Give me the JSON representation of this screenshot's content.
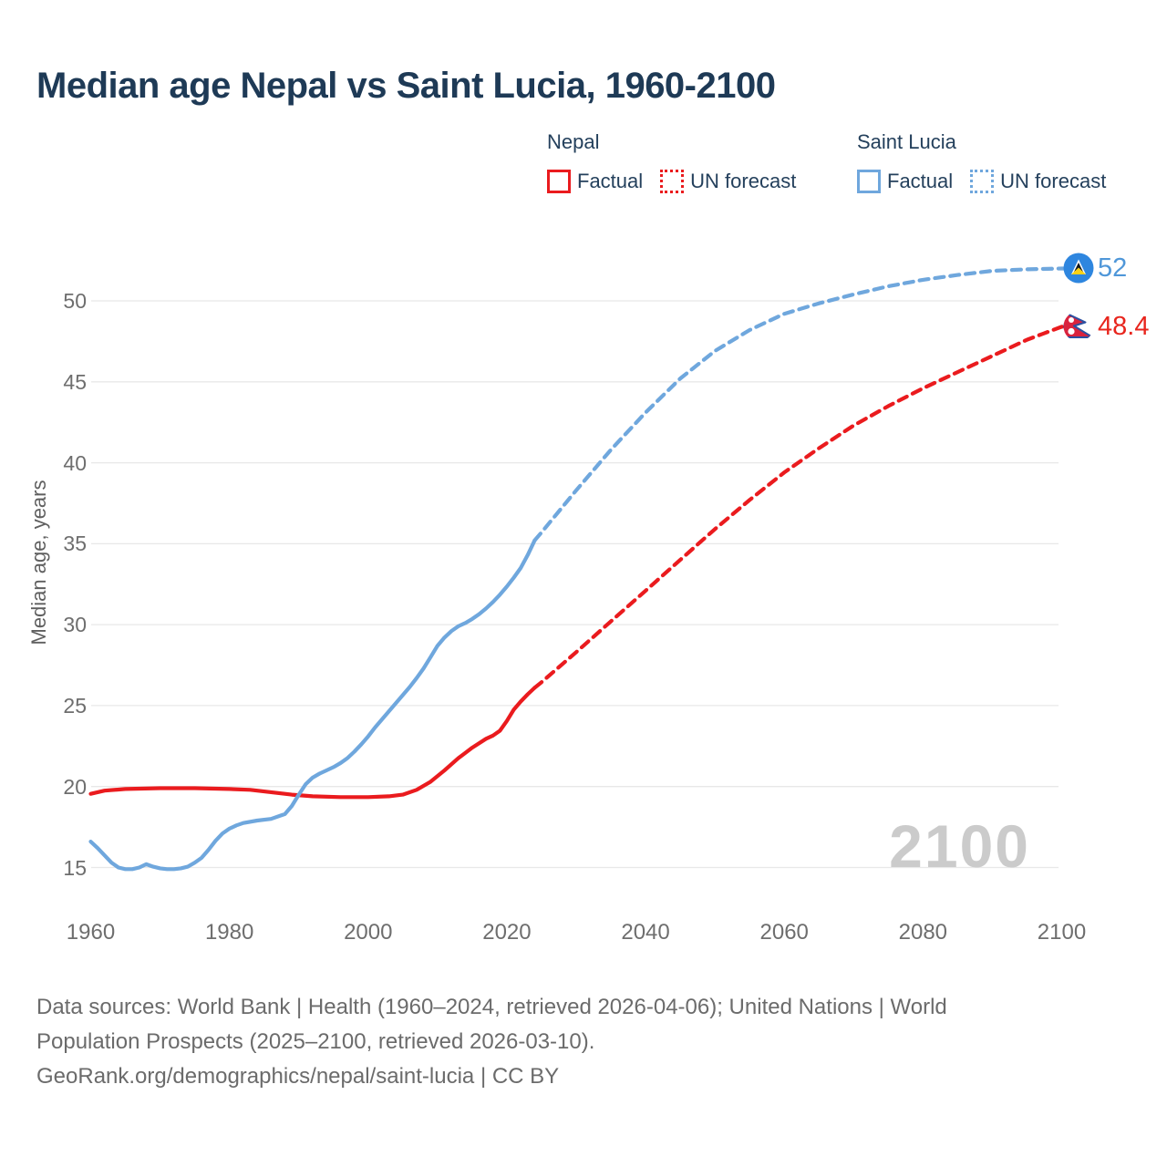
{
  "title": "Median age Nepal vs Saint Lucia, 1960-2100",
  "legend": {
    "groups": [
      {
        "name": "Nepal",
        "color": "#ea1b1e",
        "items": [
          {
            "label": "Factual",
            "style": "solid"
          },
          {
            "label": "UN forecast",
            "style": "dotted"
          }
        ]
      },
      {
        "name": "Saint Lucia",
        "color": "#6fa7dd",
        "items": [
          {
            "label": "Factual",
            "style": "solid"
          },
          {
            "label": "UN forecast",
            "style": "dotted"
          }
        ]
      }
    ]
  },
  "watermark": "2100",
  "end_labels": [
    {
      "text": "52",
      "value": 52,
      "color": "#4f97d9",
      "flag": "saint-lucia-flag"
    },
    {
      "text": "48.4",
      "value": 48.4,
      "color": "#e8251d",
      "flag": "nepal-flag"
    }
  ],
  "footer": {
    "line1": "Data sources: World Bank | Health (1960–2024, retrieved 2026-04-06); United Nations | World",
    "line2": "Population Prospects (2025–2100, retrieved 2026-03-10).",
    "line3": "GeoRank.org/demographics/nepal/saint-lucia | CC BY"
  },
  "chart_data": {
    "type": "line",
    "title": "Median age Nepal vs Saint Lucia, 1960-2100",
    "xlabel": "",
    "ylabel": "Median age, years",
    "xlim": [
      1960,
      2100
    ],
    "ylim": [
      15,
      52
    ],
    "xticks": [
      1960,
      1980,
      2000,
      2020,
      2040,
      2060,
      2080,
      2100
    ],
    "yticks": [
      15,
      20,
      25,
      30,
      35,
      40,
      45,
      50
    ],
    "grid": "horizontal",
    "legend_position": "top",
    "series": [
      {
        "name": "Nepal — Factual",
        "style": "solid",
        "color": "#ea1b1e",
        "points": [
          [
            1960,
            19.55
          ],
          [
            1962,
            19.75
          ],
          [
            1965,
            19.85
          ],
          [
            1970,
            19.9
          ],
          [
            1975,
            19.9
          ],
          [
            1980,
            19.85
          ],
          [
            1983,
            19.8
          ],
          [
            1986,
            19.65
          ],
          [
            1989,
            19.5
          ],
          [
            1992,
            19.4
          ],
          [
            1996,
            19.35
          ],
          [
            2000,
            19.35
          ],
          [
            2003,
            19.4
          ],
          [
            2005,
            19.5
          ],
          [
            2007,
            19.8
          ],
          [
            2009,
            20.3
          ],
          [
            2011,
            21.0
          ],
          [
            2013,
            21.75
          ],
          [
            2015,
            22.4
          ],
          [
            2017,
            22.95
          ],
          [
            2018,
            23.15
          ],
          [
            2019,
            23.45
          ],
          [
            2020,
            24.05
          ],
          [
            2021,
            24.75
          ],
          [
            2022,
            25.25
          ],
          [
            2023,
            25.7
          ],
          [
            2024,
            26.1
          ]
        ]
      },
      {
        "name": "Nepal — UN forecast",
        "style": "dashed",
        "color": "#ea1b1e",
        "points": [
          [
            2024,
            26.1
          ],
          [
            2025,
            26.45
          ],
          [
            2030,
            28.3
          ],
          [
            2035,
            30.2
          ],
          [
            2040,
            32.1
          ],
          [
            2045,
            34.0
          ],
          [
            2050,
            35.9
          ],
          [
            2055,
            37.7
          ],
          [
            2060,
            39.4
          ],
          [
            2065,
            40.9
          ],
          [
            2070,
            42.3
          ],
          [
            2075,
            43.5
          ],
          [
            2080,
            44.6
          ],
          [
            2085,
            45.6
          ],
          [
            2090,
            46.6
          ],
          [
            2095,
            47.6
          ],
          [
            2100,
            48.4
          ],
          [
            2102.6,
            48.45
          ]
        ]
      },
      {
        "name": "Saint Lucia — Factual",
        "style": "solid",
        "color": "#6fa7dd",
        "points": [
          [
            1960,
            16.6
          ],
          [
            1961,
            16.2
          ],
          [
            1962,
            15.75
          ],
          [
            1963,
            15.3
          ],
          [
            1964,
            15.0
          ],
          [
            1965,
            14.9
          ],
          [
            1966,
            14.9
          ],
          [
            1967,
            15.0
          ],
          [
            1968,
            15.2
          ],
          [
            1969,
            15.05
          ],
          [
            1970,
            14.95
          ],
          [
            1971,
            14.9
          ],
          [
            1972,
            14.9
          ],
          [
            1973,
            14.95
          ],
          [
            1974,
            15.05
          ],
          [
            1975,
            15.3
          ],
          [
            1976,
            15.6
          ],
          [
            1977,
            16.1
          ],
          [
            1978,
            16.65
          ],
          [
            1979,
            17.1
          ],
          [
            1980,
            17.4
          ],
          [
            1981,
            17.6
          ],
          [
            1982,
            17.75
          ],
          [
            1984,
            17.9
          ],
          [
            1986,
            18.0
          ],
          [
            1988,
            18.3
          ],
          [
            1989,
            18.8
          ],
          [
            1990,
            19.5
          ],
          [
            1991,
            20.15
          ],
          [
            1992,
            20.55
          ],
          [
            1993,
            20.8
          ],
          [
            1994,
            21.0
          ],
          [
            1995,
            21.2
          ],
          [
            1996,
            21.45
          ],
          [
            1997,
            21.75
          ],
          [
            1998,
            22.15
          ],
          [
            1999,
            22.6
          ],
          [
            2000,
            23.1
          ],
          [
            2001,
            23.65
          ],
          [
            2002,
            24.15
          ],
          [
            2003,
            24.65
          ],
          [
            2004,
            25.15
          ],
          [
            2005,
            25.65
          ],
          [
            2006,
            26.15
          ],
          [
            2007,
            26.7
          ],
          [
            2008,
            27.3
          ],
          [
            2009,
            28.0
          ],
          [
            2010,
            28.7
          ],
          [
            2011,
            29.2
          ],
          [
            2012,
            29.6
          ],
          [
            2013,
            29.9
          ],
          [
            2014,
            30.1
          ],
          [
            2015,
            30.35
          ],
          [
            2016,
            30.65
          ],
          [
            2017,
            31.0
          ],
          [
            2018,
            31.4
          ],
          [
            2019,
            31.85
          ],
          [
            2020,
            32.35
          ],
          [
            2021,
            32.9
          ],
          [
            2022,
            33.5
          ],
          [
            2023,
            34.3
          ],
          [
            2024,
            35.2
          ]
        ]
      },
      {
        "name": "Saint Lucia — UN forecast",
        "style": "dashed",
        "color": "#6fa7dd",
        "points": [
          [
            2024,
            35.2
          ],
          [
            2025,
            35.7
          ],
          [
            2030,
            38.3
          ],
          [
            2035,
            40.8
          ],
          [
            2040,
            43.1
          ],
          [
            2045,
            45.2
          ],
          [
            2050,
            46.9
          ],
          [
            2055,
            48.2
          ],
          [
            2060,
            49.2
          ],
          [
            2065,
            49.85
          ],
          [
            2070,
            50.4
          ],
          [
            2075,
            50.9
          ],
          [
            2080,
            51.3
          ],
          [
            2085,
            51.6
          ],
          [
            2090,
            51.85
          ],
          [
            2095,
            51.95
          ],
          [
            2100,
            52.0
          ],
          [
            2102.6,
            52.0
          ]
        ]
      }
    ],
    "end_annotations": [
      {
        "series": "Saint Lucia",
        "year": 2100,
        "value": 52
      },
      {
        "series": "Nepal",
        "year": 2100,
        "value": 48.4
      }
    ]
  }
}
